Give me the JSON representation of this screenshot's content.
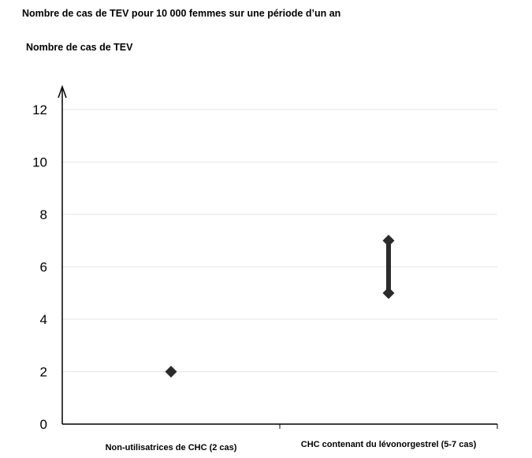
{
  "title": "Nombre de cas de TEV pour 10 000 femmes sur une période d’un an",
  "chart_data": {
    "type": "scatter",
    "title": "Nombre de cas de TEV pour 10 000 femmes sur une période d’un an",
    "xlabel": "",
    "ylabel": "Nombre de cas de TEV",
    "ylim": [
      0,
      12
    ],
    "yticks": [
      0,
      2,
      4,
      6,
      8,
      10,
      12
    ],
    "grid": true,
    "categories": [
      "Non-utilisatrices de CHC (2 cas)",
      "CHC contenant du lévonorgestrel (5-7 cas)"
    ],
    "points": [
      {
        "category": "Non-utilisatrices de CHC (2 cas)",
        "value": 2
      },
      {
        "category": "CHC contenant du lévonorgestrel (5-7 cas)",
        "low": 5,
        "high": 7
      }
    ],
    "marker_color": "#2b2b2b"
  }
}
